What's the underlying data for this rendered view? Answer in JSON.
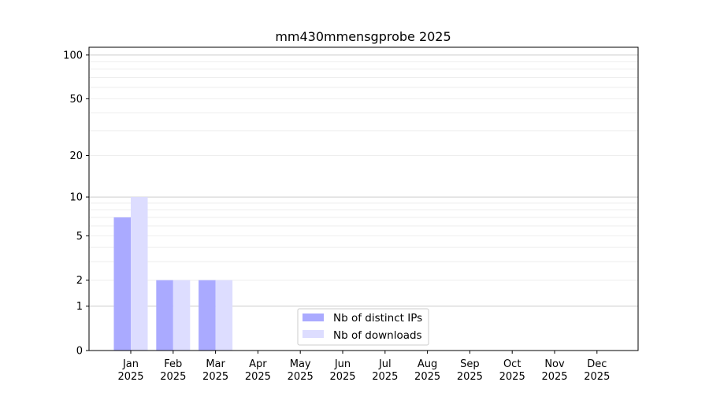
{
  "chart_data": {
    "type": "bar",
    "title": "mm430mmensgprobe 2025",
    "xlabel": "",
    "ylabel": "",
    "categories": [
      "Jan\n2025",
      "Feb\n2025",
      "Mar\n2025",
      "Apr\n2025",
      "May\n2025",
      "Jun\n2025",
      "Jul\n2025",
      "Aug\n2025",
      "Sep\n2025",
      "Oct\n2025",
      "Nov\n2025",
      "Dec\n2025"
    ],
    "series": [
      {
        "name": "Nb of distinct IPs",
        "color": "#aaaaff",
        "values": [
          7,
          2,
          2,
          0,
          0,
          0,
          0,
          0,
          0,
          0,
          0,
          0
        ]
      },
      {
        "name": "Nb of downloads",
        "color": "#ddddff",
        "values": [
          10,
          2,
          2,
          0,
          0,
          0,
          0,
          0,
          0,
          0,
          0,
          0
        ]
      }
    ],
    "yscale": "symlog",
    "ylim": [
      0,
      113
    ],
    "yticks": [
      0,
      1,
      2,
      5,
      10,
      20,
      50,
      100
    ],
    "ytick_labels": [
      "0",
      "1",
      "2",
      "5",
      "10",
      "20",
      "50",
      "100"
    ],
    "grid": true,
    "legend_position": "lower-center"
  }
}
